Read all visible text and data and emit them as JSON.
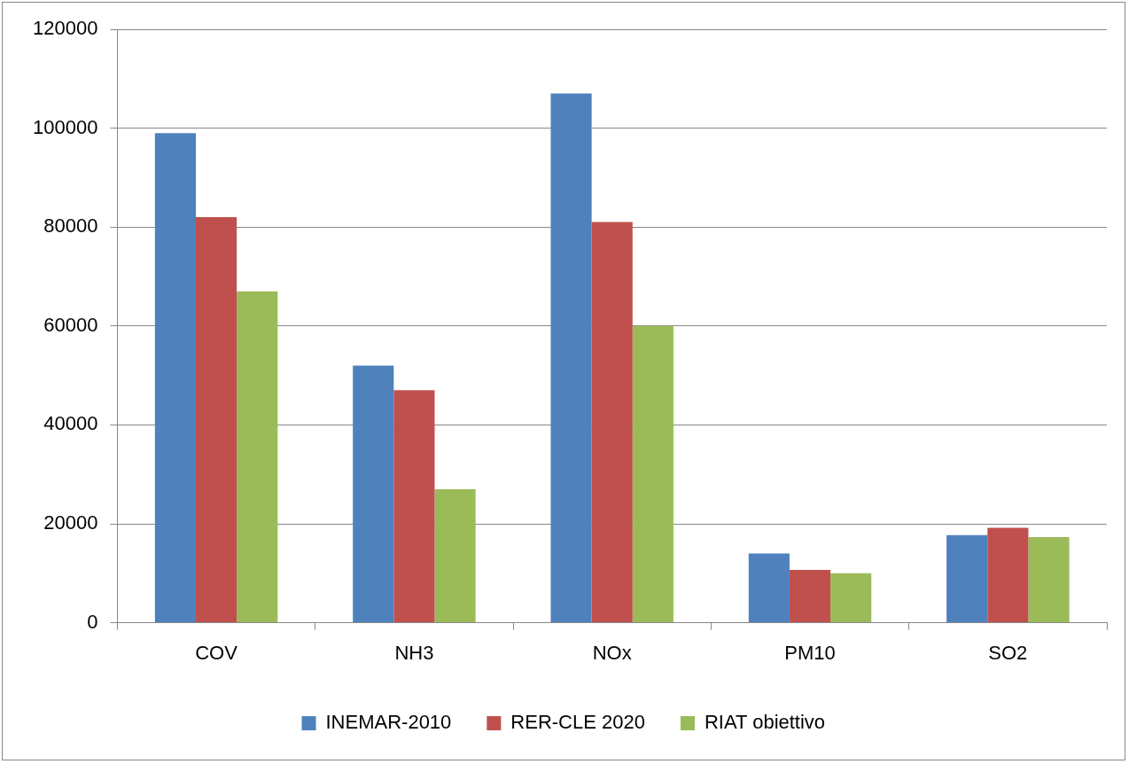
{
  "chart_data": {
    "type": "bar",
    "categories": [
      "COV",
      "NH3",
      "NOx",
      "PM10",
      "SO2"
    ],
    "series": [
      {
        "name": "INEMAR-2010",
        "color": "#4f81bd",
        "values": [
          99000,
          52000,
          107000,
          14000,
          17700
        ]
      },
      {
        "name": "RER-CLE 2020",
        "color": "#c0504d",
        "values": [
          82000,
          47000,
          81000,
          10700,
          19200
        ]
      },
      {
        "name": "RIAT obiettivo",
        "color": "#9bbb59",
        "values": [
          67000,
          27000,
          60000,
          10000,
          17300
        ]
      }
    ],
    "ylim": [
      0,
      120000
    ],
    "yticks": [
      0,
      20000,
      40000,
      60000,
      80000,
      100000,
      120000
    ],
    "grid": "y",
    "legend": "bottom"
  }
}
